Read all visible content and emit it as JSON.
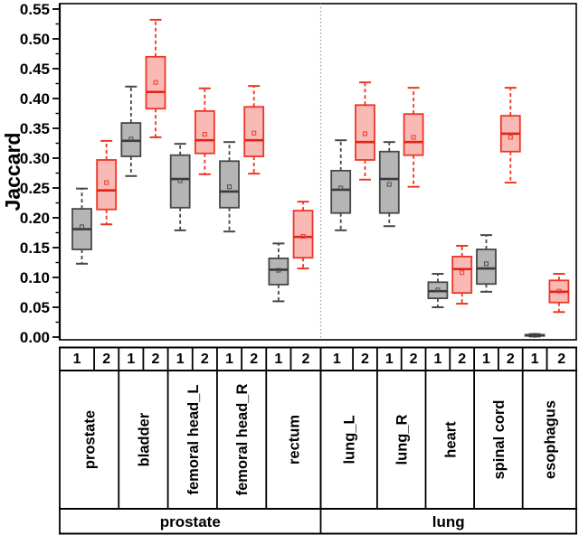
{
  "chart_data": {
    "type": "boxplot",
    "title": "",
    "ylabel": "Jaccard",
    "xlabel": "",
    "ylim": [
      0,
      0.55
    ],
    "ytick_step": 0.05,
    "yminor_step": 0.025,
    "yticks": [
      "0.00",
      "0.05",
      "0.10",
      "0.15",
      "0.20",
      "0.25",
      "0.30",
      "0.35",
      "0.40",
      "0.45",
      "0.50",
      "0.55"
    ],
    "rep_labels": [
      "1",
      "2"
    ],
    "colors": {
      "series1_fill": "#b5b5b5",
      "series1_edge": "#474747",
      "series1_median": "#3a3a3a",
      "series2_fill": "#f9b9b5",
      "series2_edge": "#ee3524",
      "series2_median": "#e32219",
      "divider": "#999999",
      "frame": "#000000"
    },
    "groups": [
      {
        "label": "prostate",
        "organs": [
          {
            "label": "prostate",
            "boxes": [
              {
                "rep": "1",
                "whisker_low": 0.123,
                "q1": 0.147,
                "median": 0.181,
                "q3": 0.215,
                "whisker_high": 0.249,
                "mean": 0.185
              },
              {
                "rep": "2",
                "whisker_low": 0.189,
                "q1": 0.214,
                "median": 0.246,
                "q3": 0.297,
                "whisker_high": 0.329,
                "mean": 0.259
              }
            ]
          },
          {
            "label": "bladder",
            "boxes": [
              {
                "rep": "1",
                "whisker_low": 0.27,
                "q1": 0.303,
                "median": 0.329,
                "q3": 0.359,
                "whisker_high": 0.42,
                "mean": 0.332
              },
              {
                "rep": "2",
                "whisker_low": 0.335,
                "q1": 0.383,
                "median": 0.411,
                "q3": 0.47,
                "whisker_high": 0.532,
                "mean": 0.427
              }
            ]
          },
          {
            "label": "femoral head_L",
            "boxes": [
              {
                "rep": "1",
                "whisker_low": 0.179,
                "q1": 0.217,
                "median": 0.265,
                "q3": 0.305,
                "whisker_high": 0.324,
                "mean": 0.262
              },
              {
                "rep": "2",
                "whisker_low": 0.273,
                "q1": 0.308,
                "median": 0.33,
                "q3": 0.379,
                "whisker_high": 0.417,
                "mean": 0.34
              }
            ]
          },
          {
            "label": "femoral head_R",
            "boxes": [
              {
                "rep": "1",
                "whisker_low": 0.177,
                "q1": 0.217,
                "median": 0.244,
                "q3": 0.295,
                "whisker_high": 0.327,
                "mean": 0.252
              },
              {
                "rep": "2",
                "whisker_low": 0.274,
                "q1": 0.303,
                "median": 0.33,
                "q3": 0.386,
                "whisker_high": 0.421,
                "mean": 0.342
              }
            ]
          },
          {
            "label": "rectum",
            "boxes": [
              {
                "rep": "1",
                "whisker_low": 0.06,
                "q1": 0.088,
                "median": 0.113,
                "q3": 0.132,
                "whisker_high": 0.157,
                "mean": 0.112
              },
              {
                "rep": "2",
                "whisker_low": 0.115,
                "q1": 0.133,
                "median": 0.168,
                "q3": 0.212,
                "whisker_high": 0.227,
                "mean": 0.169
              }
            ]
          }
        ]
      },
      {
        "label": "lung",
        "organs": [
          {
            "label": "lung_L",
            "boxes": [
              {
                "rep": "1",
                "whisker_low": 0.179,
                "q1": 0.208,
                "median": 0.247,
                "q3": 0.279,
                "whisker_high": 0.33,
                "mean": 0.25
              },
              {
                "rep": "2",
                "whisker_low": 0.264,
                "q1": 0.297,
                "median": 0.327,
                "q3": 0.389,
                "whisker_high": 0.427,
                "mean": 0.341
              }
            ]
          },
          {
            "label": "lung_R",
            "boxes": [
              {
                "rep": "1",
                "whisker_low": 0.186,
                "q1": 0.208,
                "median": 0.265,
                "q3": 0.311,
                "whisker_high": 0.327,
                "mean": 0.256
              },
              {
                "rep": "2",
                "whisker_low": 0.252,
                "q1": 0.305,
                "median": 0.327,
                "q3": 0.374,
                "whisker_high": 0.418,
                "mean": 0.335
              }
            ]
          },
          {
            "label": "heart",
            "boxes": [
              {
                "rep": "1",
                "whisker_low": 0.05,
                "q1": 0.065,
                "median": 0.077,
                "q3": 0.092,
                "whisker_high": 0.106,
                "mean": 0.079
              },
              {
                "rep": "2",
                "whisker_low": 0.056,
                "q1": 0.074,
                "median": 0.114,
                "q3": 0.135,
                "whisker_high": 0.153,
                "mean": 0.108
              }
            ]
          },
          {
            "label": "spinal cord",
            "boxes": [
              {
                "rep": "1",
                "whisker_low": 0.076,
                "q1": 0.089,
                "median": 0.115,
                "q3": 0.147,
                "whisker_high": 0.171,
                "mean": 0.123
              },
              {
                "rep": "2",
                "whisker_low": 0.259,
                "q1": 0.311,
                "median": 0.341,
                "q3": 0.371,
                "whisker_high": 0.418,
                "mean": 0.335
              }
            ]
          },
          {
            "label": "esophagus",
            "boxes": [
              {
                "rep": "1",
                "whisker_low": 0.001,
                "q1": 0.002,
                "median": 0.003,
                "q3": 0.004,
                "whisker_high": 0.005,
                "mean": 0.003
              },
              {
                "rep": "2",
                "whisker_low": 0.042,
                "q1": 0.058,
                "median": 0.076,
                "q3": 0.095,
                "whisker_high": 0.106,
                "mean": 0.077
              }
            ]
          }
        ]
      }
    ]
  }
}
